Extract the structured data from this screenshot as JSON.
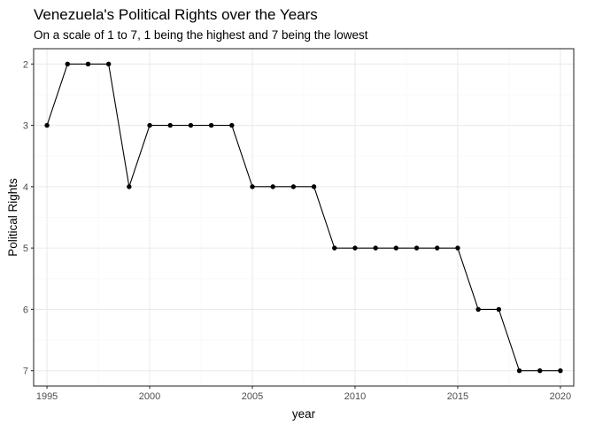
{
  "chart_data": {
    "type": "line",
    "title": "Venezuela's Political Rights over the Years",
    "subtitle": "On a scale of 1 to 7, 1 being the highest and 7 being the lowest",
    "xlabel": "year",
    "ylabel": "Political Rights",
    "x": [
      1995,
      1996,
      1997,
      1998,
      1999,
      2000,
      2001,
      2002,
      2003,
      2004,
      2005,
      2006,
      2007,
      2008,
      2009,
      2010,
      2011,
      2012,
      2013,
      2014,
      2015,
      2016,
      2017,
      2018,
      2019,
      2020
    ],
    "values": [
      3,
      2,
      2,
      2,
      4,
      3,
      3,
      3,
      3,
      3,
      4,
      4,
      4,
      4,
      5,
      5,
      5,
      5,
      5,
      5,
      5,
      6,
      6,
      7,
      7,
      7
    ],
    "xlim": [
      1994.35,
      2020.65
    ],
    "ylim": [
      1.75,
      7.25
    ],
    "y_reversed": true,
    "x_ticks": [
      1995,
      2000,
      2005,
      2010,
      2015,
      2020
    ],
    "y_ticks": [
      2,
      3,
      4,
      5,
      6,
      7
    ],
    "grid": true,
    "colors": {
      "line": "#000000",
      "point": "#000000",
      "grid_major": "#ebebeb",
      "grid_minor": "#f5f5f5",
      "panel_border": "#333333",
      "tick_text": "#4d4d4d"
    }
  }
}
